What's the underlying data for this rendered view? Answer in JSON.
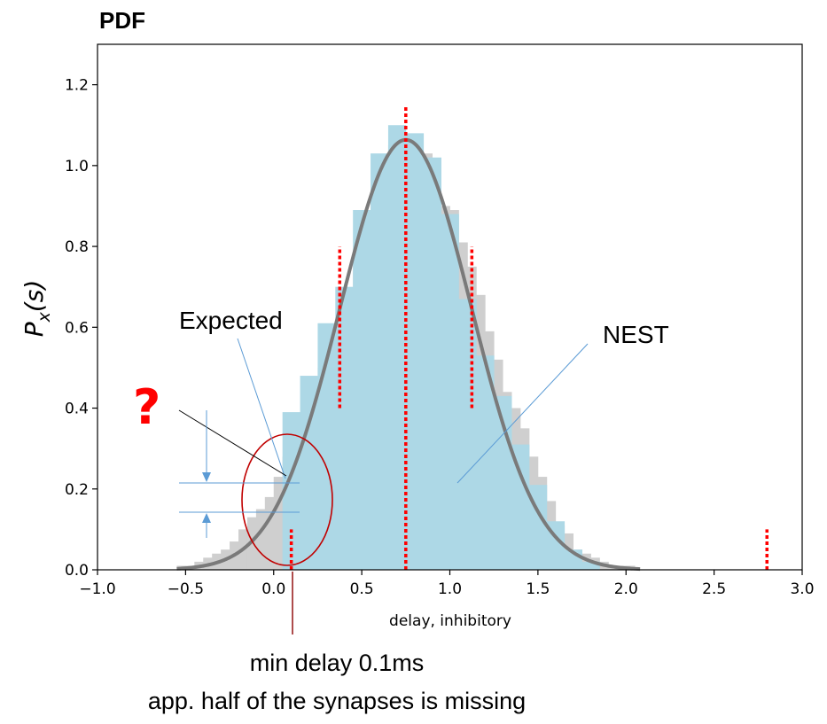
{
  "page": {
    "title": "PDF"
  },
  "annotations": {
    "expected": "Expected",
    "nest": "NEST",
    "question": "?",
    "min_delay": "min delay 0.1ms",
    "missing_note": "app. half of the synapses is missing"
  },
  "colors": {
    "nest_bars": "#add8e6",
    "expected_bars": "#cfcfcf",
    "pdf_curve": "#7a7a7a",
    "marker_lines": "#ff0000",
    "ellipse": "#c00000",
    "callout_lines": "#5b9bd5"
  },
  "chart_data": {
    "type": "bar",
    "xlabel": "delay, inhibitory",
    "ylabel": "P_x(s)",
    "xlim": [
      -1.0,
      3.0
    ],
    "ylim": [
      0.0,
      1.3
    ],
    "xticks": [
      "−1.0",
      "−0.5",
      "0.0",
      "0.5",
      "1.0",
      "1.5",
      "2.0",
      "2.5",
      "3.0"
    ],
    "yticks": [
      "0.0",
      "0.2",
      "0.4",
      "0.6",
      "0.8",
      "1.0",
      "1.2"
    ],
    "grid": false,
    "series": [
      {
        "name": "Expected",
        "bin_width": 0.05,
        "x_start": -0.55,
        "values": [
          0.01,
          0.01,
          0.02,
          0.03,
          0.04,
          0.05,
          0.07,
          0.1,
          0.13,
          0.15,
          0.18,
          0.23,
          0.28,
          0.34,
          0.38,
          0.43,
          0.5,
          0.56,
          0.61,
          0.66,
          0.77,
          0.83,
          0.95,
          0.98,
          1.05,
          1.07,
          1.07,
          1.04,
          1.03,
          0.99,
          0.9,
          0.89,
          0.81,
          0.75,
          0.68,
          0.59,
          0.52,
          0.44,
          0.4,
          0.35,
          0.28,
          0.23,
          0.17,
          0.11,
          0.09,
          0.05,
          0.04,
          0.03,
          0.02,
          0.01,
          0.01,
          0.01
        ]
      },
      {
        "name": "NEST",
        "bin_width": 0.1,
        "x_start": 0.05,
        "values": [
          0.39,
          0.48,
          0.61,
          0.7,
          0.89,
          1.03,
          1.1,
          1.08,
          1.02,
          0.88,
          0.67,
          0.53,
          0.43,
          0.31,
          0.21,
          0.12,
          0.05,
          0.02
        ]
      },
      {
        "name": "PDF",
        "kind": "normal_curve",
        "mean": 0.75,
        "sd": 0.375
      }
    ],
    "vertical_markers": [
      {
        "x": 0.1,
        "y_from": 0.0,
        "y_to": 0.1
      },
      {
        "x": 0.375,
        "y_from": 0.4,
        "y_to": 0.8
      },
      {
        "x": 0.75,
        "y_from": 0.0,
        "y_to": 1.15
      },
      {
        "x": 1.125,
        "y_from": 0.4,
        "y_to": 0.8
      },
      {
        "x": 2.8,
        "y_from": 0.0,
        "y_to": 0.1
      }
    ]
  }
}
